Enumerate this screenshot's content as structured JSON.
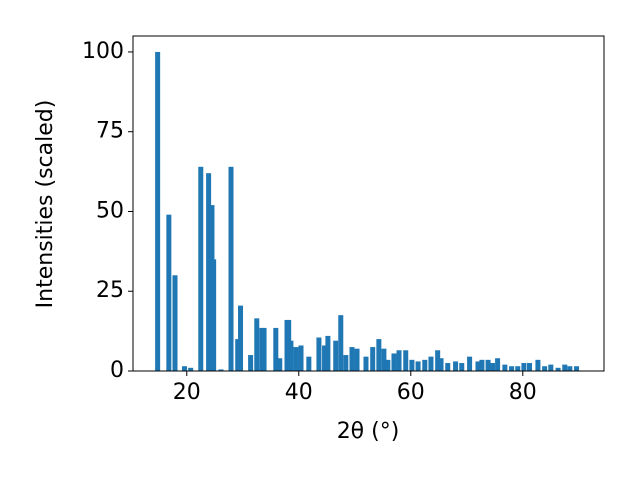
{
  "chart_data": {
    "type": "bar",
    "x_label": "2θ (°)",
    "y_label": "Intensities (scaled)",
    "x": [
      14.8,
      16.8,
      17.9,
      19.6,
      20.7,
      22.5,
      23.9,
      24.5,
      24.8,
      26.1,
      27.9,
      29.1,
      29.6,
      31.4,
      32.5,
      33.4,
      33.8,
      35.9,
      36.6,
      37.9,
      38.2,
      38.6,
      39.5,
      40.4,
      41.8,
      43.6,
      44.6,
      45.2,
      46.6,
      47.5,
      48.4,
      49.5,
      50.4,
      52.0,
      53.2,
      54.3,
      55.2,
      55.9,
      57.0,
      57.9,
      59.1,
      60.2,
      61.3,
      62.5,
      63.6,
      64.8,
      65.4,
      66.6,
      68.0,
      69.1,
      70.5,
      72.0,
      72.7,
      73.8,
      74.6,
      75.5,
      76.8,
      78.0,
      79.1,
      80.2,
      81.2,
      82.7,
      83.9,
      85.0,
      86.3,
      87.5,
      88.4,
      89.6
    ],
    "values": [
      100,
      49,
      30,
      1.5,
      1,
      64,
      62,
      52,
      35,
      0.5,
      64,
      10,
      20.5,
      5,
      16.5,
      13.5,
      13.5,
      13.5,
      4,
      16,
      16,
      9.5,
      7.5,
      8,
      4.5,
      10.5,
      8,
      11,
      9.5,
      17.5,
      5,
      7.5,
      7,
      4.5,
      7.5,
      10,
      7,
      3.5,
      5.5,
      6.5,
      6.5,
      3.5,
      3,
      3.5,
      4.5,
      6.5,
      4,
      2.5,
      3,
      2.5,
      4.5,
      3,
      3.5,
      3.5,
      2.5,
      4,
      2,
      1.5,
      1.5,
      2.5,
      2.5,
      3.5,
      1.5,
      2,
      1,
      2,
      1.5,
      1.5
    ],
    "color": "#1f77b4",
    "xlim": [
      10.4,
      94.5
    ],
    "xticks": [
      20,
      40,
      60,
      80
    ],
    "ylim": [
      0,
      105
    ],
    "yticks": [
      0,
      25,
      50,
      75,
      100
    ]
  }
}
